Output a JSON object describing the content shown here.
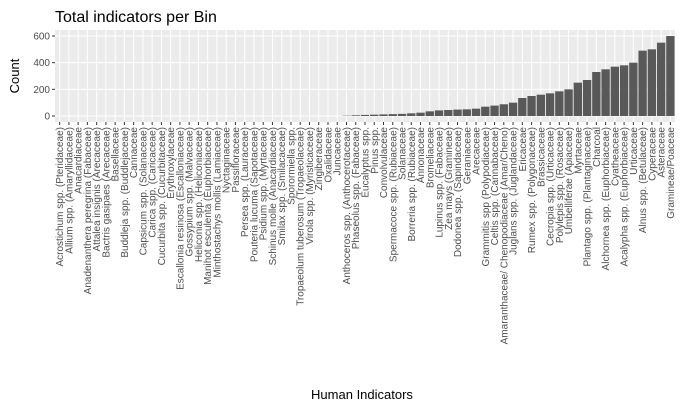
{
  "chart_data": {
    "type": "bar",
    "title": "Total indicators per Bin",
    "x_label": "Human Indicators",
    "y_label": "Count",
    "categories": [
      "Acrostichum spp. (Pteridaceae)",
      "Allium spp. (Amaryllidaceae)",
      "Anacardiaceae",
      "Anadenanthera peregrina (Fabaceae)",
      "Attalea insignis (Arecaceae)",
      "Bactris gasipaes (Arecaceae)",
      "Basellaceae",
      "Buddleja spp. (Buddlejaceae)",
      "Cannaceae",
      "Capsicum spp. (Solanaceae)",
      "Carica spp. (Caricaceae)",
      "Cucurbita spp. (Cucurbitaceae)",
      "Erythroxylaceae",
      "Escallonia resinosa (Escalloniaceae)",
      "Gossypium spp. (Malvaceae)",
      "Heliconia spp. (Heliconiaceae)",
      "Manihot esculenta (Euphorbiaceae)",
      "Minthostachys mollis (Lamiaceae)",
      "Nyctaginaceae",
      "Passifloraceae",
      "Persea spp. (Lauraceae)",
      "Pouteria lucuma (Sapotaceae)",
      "Psidium spp. (Myrtaceae)",
      "Schinus molle (Anacardiaceae)",
      "Smilax spp. (Smilacaceae)",
      "Sporormiella spp.",
      "Tropaeolum tuberosum (Tropaeolaceae)",
      "Virola spp. (Myristicaceae)",
      "Zingiberaceae",
      "Oxalidaceae",
      "Juncaceae",
      "Anthoceros spp. (Anthocerotaceae)",
      "Phaseolus spp. (Fabaceae)",
      "Eucalyptus spp.",
      "Pinus spp.",
      "Convolvulaceae",
      "Spermacoce spp. (Rubiaceae)",
      "Solanaceae",
      "Borreria spp. (Rubiaceae)",
      "Annonaceae",
      "Bromeliaceae",
      "Lupinus spp. (Fabaceae)",
      "Zea mays (Gramineae)",
      "Dodonea spp. (Sapindaceae)",
      "Geraniaceae",
      "Arecaceae",
      "Grammitis spp (Polypodiaceae)",
      "Celtis spp. (Cannabaceae)",
      "Amaranthaceae/ Chenopodiaceae (Amar/Cheno)",
      "Juglans spp. (Juglandaceae)",
      "Ericaceae",
      "Rumex spp. (Polygonaceae)",
      "Brassicaceae",
      "Cecropia spp. (Urticaceae)",
      "Polylepis spp. (Rosaceae)",
      "Umbelliferae (Apiaceae)",
      "Myrtaceae",
      "Plantago spp. (Plantaginaceae)",
      "Charcoal",
      "Alchornea spp. (Euphorbiaceae)",
      "Cyatheaceae",
      "Acalypha spp. (Euphorbiaceae)",
      "Urticaceae",
      "Alnus spp. (Betulaceae)",
      "Cyperaceae",
      "Asteraceae",
      "Gramineae/Poaceae"
    ],
    "values": [
      0,
      0,
      0,
      0,
      0,
      0,
      0,
      0,
      0,
      0,
      0,
      0,
      0,
      0,
      0,
      0,
      0,
      0,
      0,
      0,
      0,
      0,
      0,
      0,
      0,
      0,
      0,
      0,
      0,
      0,
      0,
      2,
      5,
      8,
      10,
      12,
      14,
      16,
      20,
      25,
      35,
      42,
      45,
      48,
      50,
      55,
      70,
      78,
      88,
      100,
      135,
      150,
      160,
      170,
      185,
      200,
      250,
      270,
      330,
      350,
      370,
      380,
      400,
      490,
      500,
      550,
      600
    ],
    "color": "#595959",
    "ylim": [
      -45,
      645
    ],
    "yticks": [
      0,
      200,
      400,
      600
    ],
    "grid": true
  }
}
